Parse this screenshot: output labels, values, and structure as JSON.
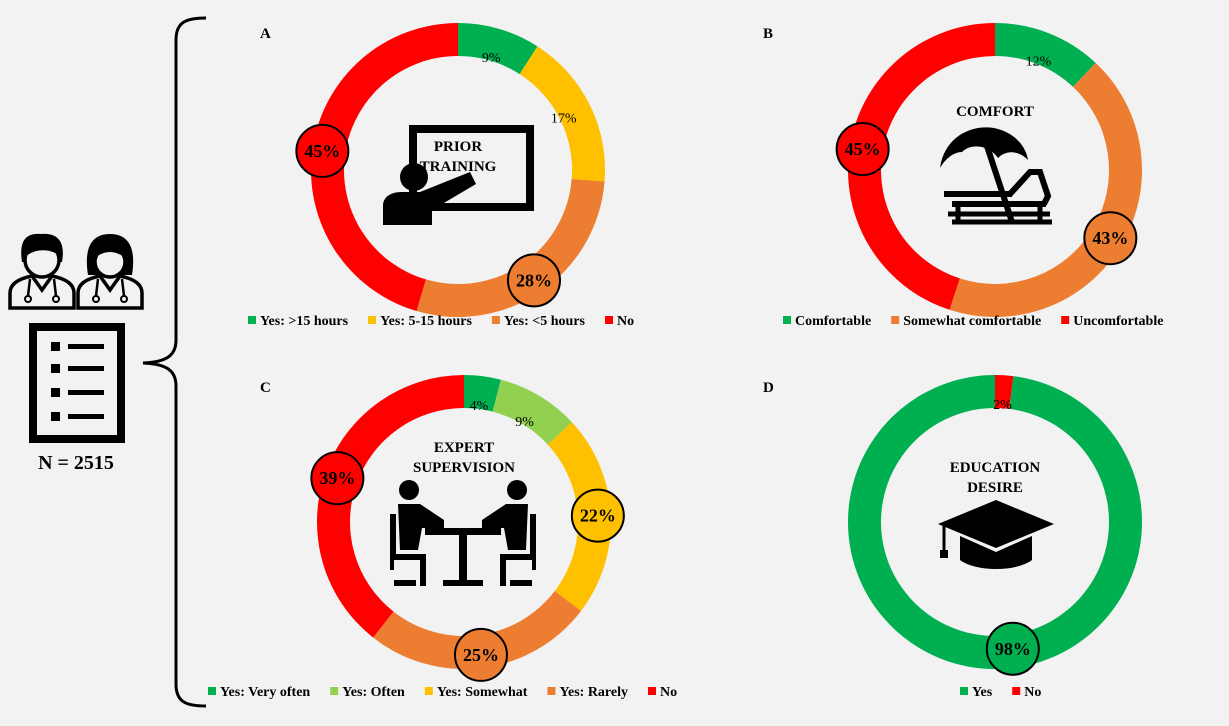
{
  "n_label": "N = 2515",
  "colors": {
    "dark_green": "#00b050",
    "light_green": "#92d050",
    "yellow": "#ffc000",
    "orange": "#ed7d31",
    "red": "#ff0000"
  },
  "chart_data": [
    {
      "type": "pie",
      "panel": "A",
      "center_title": [
        "PRIOR",
        "TRAINING"
      ],
      "icon": "presentation-teacher-icon",
      "slices": [
        {
          "label": "Yes: >15 hours",
          "value": 9,
          "display": "9%",
          "color": "#00b050"
        },
        {
          "label": "Yes: 5-15 hours",
          "value": 17,
          "display": "17%",
          "color": "#ffc000"
        },
        {
          "label": "Yes: <5 hours",
          "value": 28,
          "display": "28%",
          "color": "#ed7d31"
        },
        {
          "label": "No",
          "value": 45,
          "display": "45%",
          "color": "#ff0000"
        }
      ]
    },
    {
      "type": "pie",
      "panel": "B",
      "center_title": [
        "COMFORT"
      ],
      "icon": "beach-chair-umbrella-icon",
      "slices": [
        {
          "label": "Comfortable",
          "value": 12,
          "display": "12%",
          "color": "#00b050"
        },
        {
          "label": "Somewhat comfortable",
          "value": 43,
          "display": "43%",
          "color": "#ed7d31"
        },
        {
          "label": "Uncomfortable",
          "value": 45,
          "display": "45%",
          "color": "#ff0000"
        }
      ]
    },
    {
      "type": "pie",
      "panel": "C",
      "center_title": [
        "EXPERT",
        "SUPERVISION"
      ],
      "icon": "meeting-table-icon",
      "slices": [
        {
          "label": "Yes: Very often",
          "value": 4,
          "display": "4%",
          "color": "#00b050"
        },
        {
          "label": "Yes: Often",
          "value": 9,
          "display": "9%",
          "color": "#92d050"
        },
        {
          "label": "Yes: Somewhat",
          "value": 22,
          "display": "22%",
          "color": "#ffc000"
        },
        {
          "label": "Yes: Rarely",
          "value": 25,
          "display": "25%",
          "color": "#ed7d31"
        },
        {
          "label": "No",
          "value": 39,
          "display": "39%",
          "color": "#ff0000"
        }
      ]
    },
    {
      "type": "pie",
      "panel": "D",
      "center_title": [
        "EDUCATION",
        "DESIRE"
      ],
      "icon": "graduation-cap-icon",
      "slices": [
        {
          "label": "No",
          "value": 2,
          "display": "2%",
          "color": "#ff0000"
        },
        {
          "label": "Yes",
          "value": 98,
          "display": "98%",
          "color": "#00b050"
        }
      ],
      "legend_order": [
        "Yes",
        "No"
      ]
    }
  ]
}
